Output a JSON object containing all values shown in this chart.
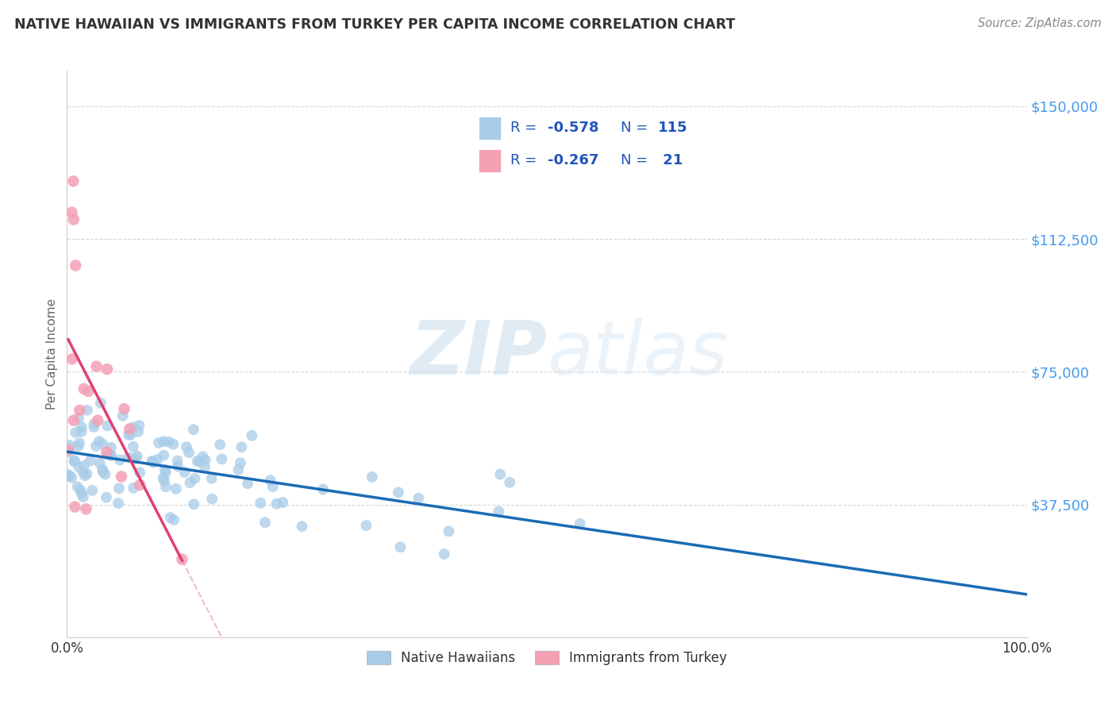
{
  "title": "NATIVE HAWAIIAN VS IMMIGRANTS FROM TURKEY PER CAPITA INCOME CORRELATION CHART",
  "source": "Source: ZipAtlas.com",
  "ylabel": "Per Capita Income",
  "xlim": [
    0,
    1.0
  ],
  "ylim": [
    0,
    160000
  ],
  "yticks": [
    0,
    37500,
    75000,
    112500,
    150000
  ],
  "ytick_labels": [
    "",
    "$37,500",
    "$75,000",
    "$112,500",
    "$150,000"
  ],
  "xtick_labels": [
    "0.0%",
    "100.0%"
  ],
  "legend_r1": "-0.578",
  "legend_n1": "115",
  "legend_r2": "-0.267",
  "legend_n2": " 21",
  "legend_label1": "Native Hawaiians",
  "legend_label2": "Immigrants from Turkey",
  "color_blue": "#a8cce8",
  "color_pink": "#f4a0b5",
  "line_blue": "#1a6bb5",
  "line_pink": "#e04070",
  "line_pink_dash": "#e8a0b8",
  "watermark_zip": "ZIP",
  "watermark_atlas": "atlas",
  "bg_color": "#ffffff",
  "grid_color": "#cccccc",
  "title_color": "#333333",
  "source_color": "#888888",
  "axis_label_color": "#666666",
  "ytick_color": "#4499ee",
  "legend_text_color": "#2255bb"
}
